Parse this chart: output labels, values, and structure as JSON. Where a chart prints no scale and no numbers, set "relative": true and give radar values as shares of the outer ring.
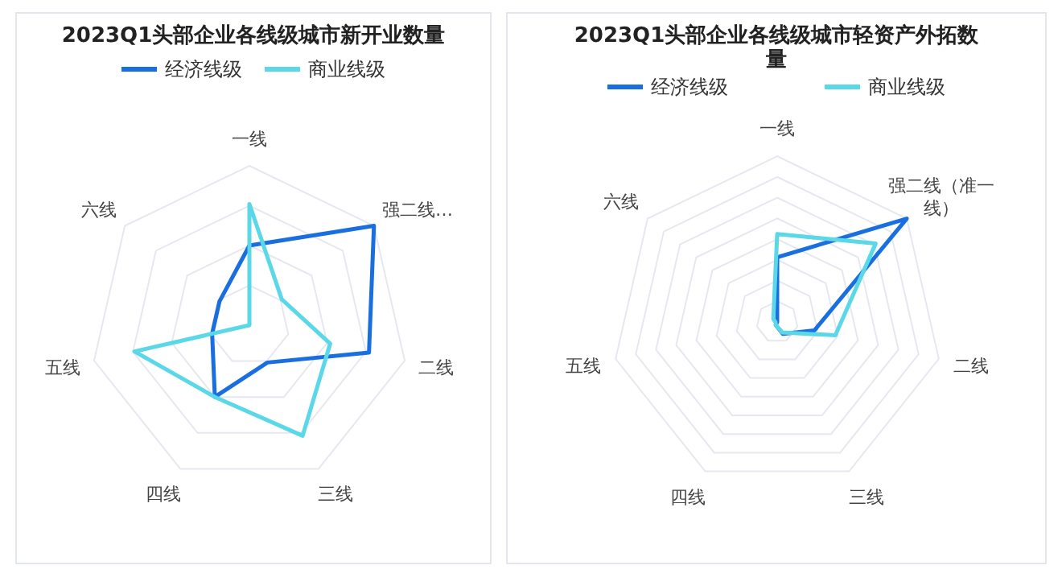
{
  "chart_data": [
    {
      "type": "radar",
      "title": "2023Q1头部企业各线级城市新开业数量",
      "categories": [
        "一线",
        "强二线…",
        "二线",
        "三线",
        "四线",
        "五线",
        "六线"
      ],
      "relative": true,
      "legend": "top",
      "series": [
        {
          "name": "经济线级",
          "color": "#1a6fe0",
          "values": [
            0.5,
            1.0,
            0.77,
            0.26,
            0.5,
            0.24,
            0.24
          ]
        },
        {
          "name": "商业线级",
          "color": "#5ad8e8",
          "values": [
            0.76,
            0.26,
            0.52,
            0.77,
            0.5,
            0.74,
            0.0
          ]
        }
      ]
    },
    {
      "type": "radar",
      "title": "2023Q1头部企业各线级城市轻资产外拓数量",
      "categories": [
        "一线",
        "强二线（准一线）",
        "二线",
        "三线",
        "四线",
        "五线",
        "六线"
      ],
      "relative": true,
      "legend": "top",
      "series": [
        {
          "name": "经济线级",
          "color": "#1a6fe0",
          "values": [
            0.39,
            1.0,
            0.23,
            0.08,
            0.02,
            0.0,
            0.0
          ]
        },
        {
          "name": "商业线级",
          "color": "#5ad8e8",
          "values": [
            0.53,
            0.76,
            0.36,
            0.07,
            0.02,
            0.01,
            0.03
          ]
        }
      ]
    }
  ]
}
